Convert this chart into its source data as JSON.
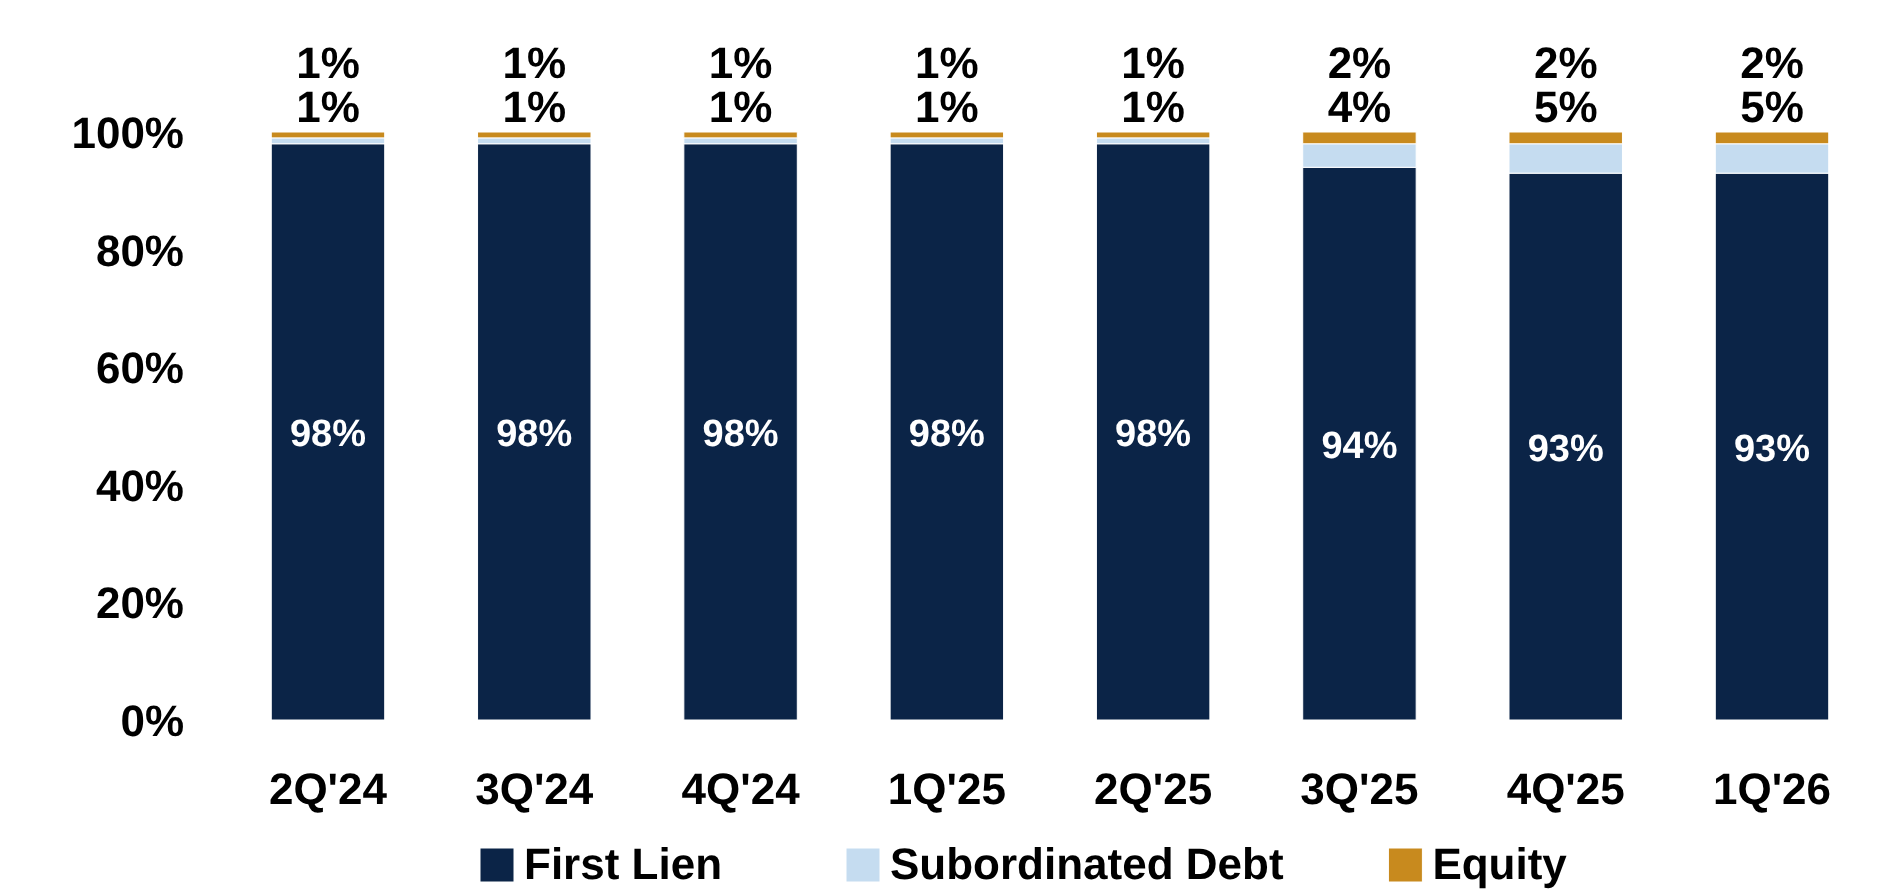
{
  "chart_data": {
    "type": "bar",
    "stacked": true,
    "categories": [
      "2Q'24",
      "3Q'24",
      "4Q'24",
      "1Q'25",
      "2Q'25",
      "3Q'25",
      "4Q'25",
      "1Q'26"
    ],
    "series": [
      {
        "name": "First Lien",
        "color": "#0b2447",
        "values": [
          98,
          98,
          98,
          98,
          98,
          94,
          93,
          93
        ]
      },
      {
        "name": "Subordinated Debt",
        "color": "#c5dcf0",
        "values": [
          1,
          1,
          1,
          1,
          1,
          4,
          5,
          5
        ]
      },
      {
        "name": "Equity",
        "color": "#c88a1e",
        "values": [
          1,
          1,
          1,
          1,
          1,
          2,
          2,
          2
        ]
      }
    ],
    "ylim": [
      0,
      100
    ],
    "yticks": [
      {
        "value": 0,
        "label": "0%"
      },
      {
        "value": 20,
        "label": "20%"
      },
      {
        "value": 40,
        "label": "40%"
      },
      {
        "value": 60,
        "label": "60%"
      },
      {
        "value": 80,
        "label": "80%"
      },
      {
        "value": 100,
        "label": "100%"
      }
    ],
    "value_labels": [
      [
        "98%",
        "98%",
        "98%",
        "98%",
        "98%",
        "94%",
        "93%",
        "93%"
      ],
      [
        "1%",
        "1%",
        "1%",
        "1%",
        "1%",
        "4%",
        "5%",
        "5%"
      ],
      [
        "1%",
        "1%",
        "1%",
        "1%",
        "1%",
        "2%",
        "2%",
        "2%"
      ]
    ],
    "grid": false,
    "legend": "bottom"
  }
}
